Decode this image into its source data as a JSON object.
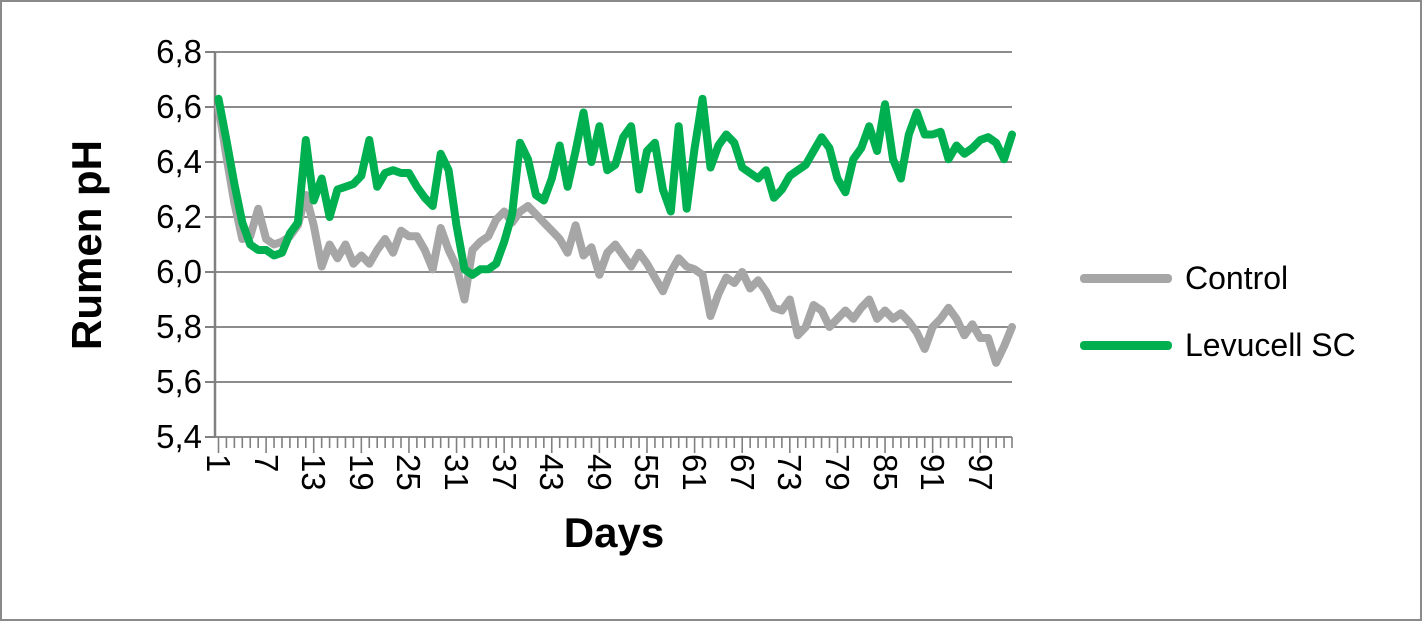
{
  "chart_data": {
    "type": "line",
    "title": "",
    "xlabel": "Days",
    "ylabel": "Rumen pH",
    "ylim": [
      5.4,
      6.8
    ],
    "x_range": [
      1,
      101
    ],
    "grid": "horizontal",
    "legend_position": "right",
    "decimal_separator": ",",
    "y_ticks": [
      5.4,
      5.6,
      5.8,
      6.0,
      6.2,
      6.4,
      6.6,
      6.8
    ],
    "y_tick_labels": [
      "5,4",
      "5,6",
      "5,8",
      "6,0",
      "6,2",
      "6,4",
      "6,6",
      "6,8"
    ],
    "x_tick_days": [
      1,
      7,
      13,
      19,
      25,
      31,
      37,
      43,
      49,
      55,
      61,
      67,
      73,
      79,
      85,
      91,
      97
    ],
    "x_tick_labels": [
      "1",
      "7",
      "13",
      "19",
      "25",
      "31",
      "37",
      "43",
      "49",
      "55",
      "61",
      "67",
      "73",
      "79",
      "85",
      "91",
      "97"
    ],
    "series": [
      {
        "name": "Control",
        "color": "#A6A6A6",
        "values": [
          6.6,
          6.42,
          6.25,
          6.12,
          6.13,
          6.23,
          6.12,
          6.1,
          6.11,
          6.13,
          6.17,
          6.28,
          6.17,
          6.02,
          6.1,
          6.05,
          6.1,
          6.03,
          6.06,
          6.03,
          6.08,
          6.12,
          6.07,
          6.15,
          6.13,
          6.13,
          6.08,
          6.01,
          6.16,
          6.08,
          6.02,
          5.9,
          6.08,
          6.11,
          6.13,
          6.19,
          6.22,
          6.18,
          6.22,
          6.24,
          6.21,
          6.18,
          6.15,
          6.12,
          6.07,
          6.17,
          6.06,
          6.09,
          5.99,
          6.07,
          6.1,
          6.06,
          6.02,
          6.07,
          6.03,
          5.98,
          5.93,
          6.0,
          6.05,
          6.02,
          6.01,
          5.99,
          5.84,
          5.92,
          5.98,
          5.96,
          6.0,
          5.94,
          5.97,
          5.93,
          5.87,
          5.86,
          5.9,
          5.77,
          5.8,
          5.88,
          5.86,
          5.8,
          5.83,
          5.86,
          5.83,
          5.87,
          5.9,
          5.83,
          5.86,
          5.83,
          5.85,
          5.82,
          5.78,
          5.72,
          5.8,
          5.83,
          5.87,
          5.83,
          5.77,
          5.81,
          5.76,
          5.76,
          5.67,
          5.73,
          5.8
        ]
      },
      {
        "name": "Levucell SC",
        "color": "#00B050",
        "values": [
          6.63,
          6.48,
          6.32,
          6.18,
          6.1,
          6.08,
          6.08,
          6.06,
          6.07,
          6.14,
          6.18,
          6.48,
          6.26,
          6.34,
          6.2,
          6.3,
          6.31,
          6.32,
          6.35,
          6.48,
          6.31,
          6.36,
          6.37,
          6.36,
          6.36,
          6.31,
          6.27,
          6.24,
          6.43,
          6.37,
          6.17,
          6.01,
          5.99,
          6.01,
          6.01,
          6.03,
          6.11,
          6.21,
          6.47,
          6.41,
          6.28,
          6.26,
          6.34,
          6.46,
          6.31,
          6.44,
          6.58,
          6.4,
          6.53,
          6.37,
          6.39,
          6.49,
          6.53,
          6.3,
          6.44,
          6.47,
          6.3,
          6.22,
          6.53,
          6.23,
          6.45,
          6.63,
          6.38,
          6.46,
          6.5,
          6.47,
          6.38,
          6.36,
          6.34,
          6.37,
          6.27,
          6.3,
          6.35,
          6.37,
          6.39,
          6.44,
          6.49,
          6.45,
          6.34,
          6.29,
          6.41,
          6.45,
          6.53,
          6.44,
          6.61,
          6.41,
          6.34,
          6.5,
          6.58,
          6.5,
          6.5,
          6.51,
          6.41,
          6.46,
          6.43,
          6.45,
          6.48,
          6.49,
          6.47,
          6.41,
          6.5
        ]
      }
    ],
    "colors": {
      "gridline": "#8C8C8C",
      "axis": "#808080",
      "text": "#000000",
      "background": "#FFFFFF",
      "border": "#8A8A8A"
    }
  }
}
